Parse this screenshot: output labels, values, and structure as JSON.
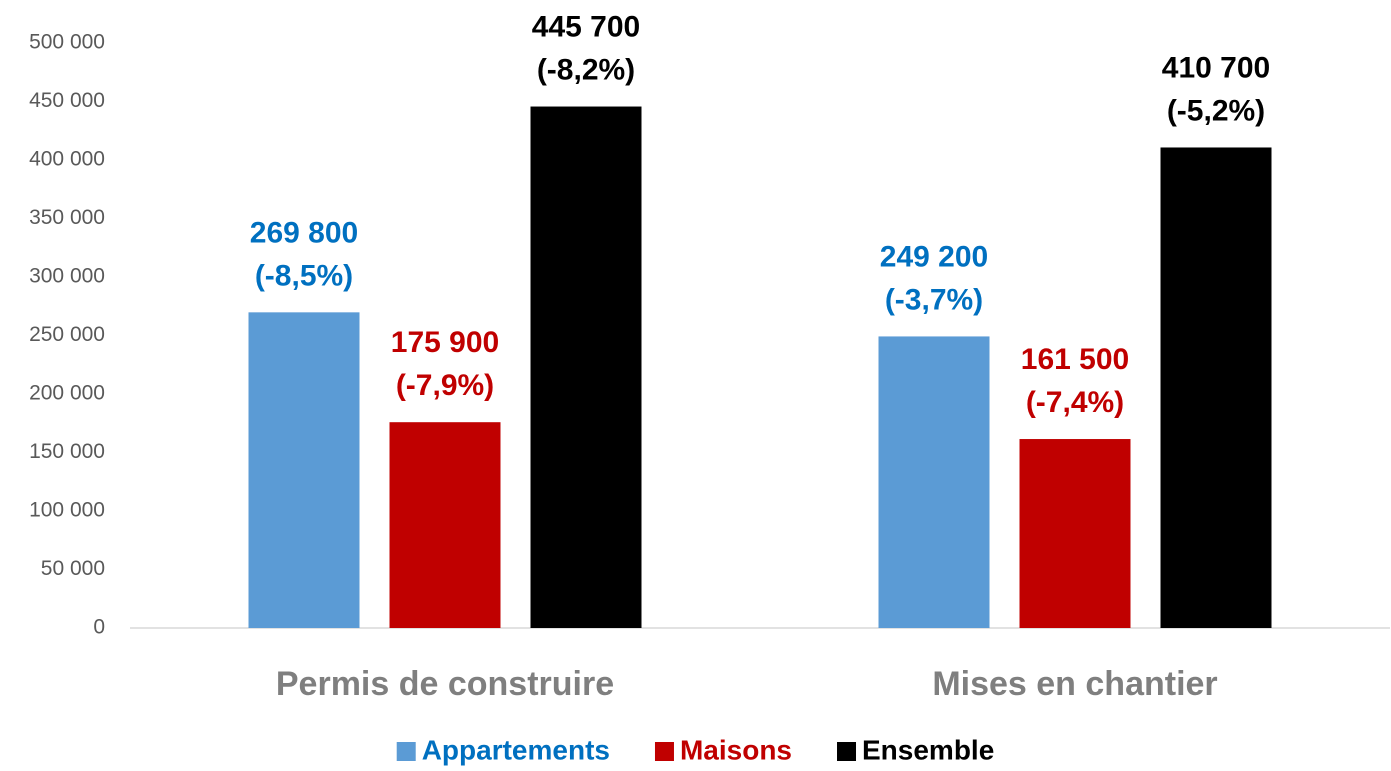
{
  "chart_data": {
    "type": "bar",
    "categories": [
      "Permis de construire",
      "Mises en chantier"
    ],
    "series": [
      {
        "name": "Appartements",
        "color": "#5b9bd5",
        "label_color": "#0070c0",
        "values": [
          269800,
          249200
        ],
        "value_labels": [
          "269 800",
          "249 200"
        ],
        "change_labels": [
          "(-8,5%)",
          "(-3,7%)"
        ]
      },
      {
        "name": "Maisons",
        "color": "#c00000",
        "label_color": "#c00000",
        "values": [
          175900,
          161500
        ],
        "value_labels": [
          "175 900",
          "161 500"
        ],
        "change_labels": [
          "(-7,9%)",
          "(-7,4%)"
        ]
      },
      {
        "name": "Ensemble",
        "color": "#000000",
        "label_color": "#000000",
        "values": [
          445700,
          410700
        ],
        "value_labels": [
          "445 700",
          "410 700"
        ],
        "change_labels": [
          "(-8,2%)",
          "(-5,2%)"
        ]
      }
    ],
    "ylim": [
      0,
      500000
    ],
    "yticks": [
      {
        "value": 0,
        "label": "0"
      },
      {
        "value": 50000,
        "label": "50 000"
      },
      {
        "value": 100000,
        "label": "100 000"
      },
      {
        "value": 150000,
        "label": "150 000"
      },
      {
        "value": 200000,
        "label": "200 000"
      },
      {
        "value": 250000,
        "label": "250 000"
      },
      {
        "value": 300000,
        "label": "300 000"
      },
      {
        "value": 350000,
        "label": "350 000"
      },
      {
        "value": 400000,
        "label": "400 000"
      },
      {
        "value": 450000,
        "label": "450 000"
      },
      {
        "value": 500000,
        "label": "500 000"
      }
    ],
    "grid": false,
    "legend": "bottom"
  }
}
